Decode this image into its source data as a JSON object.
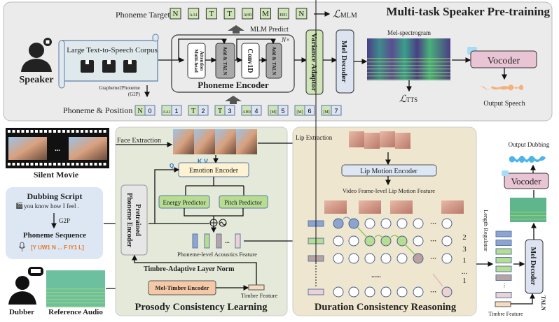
{
  "top": {
    "title": "Multi-task Speaker Pre-training",
    "speaker_label": "Speaker",
    "corpus_label": "Large Text-to-Speech Corpus",
    "g2p_label_1": "Grapheme2Phoneme",
    "g2p_label_2": "(G2P)",
    "phoneme_target_label": "Phoneme Target",
    "phoneme_target_tokens": [
      "N",
      "AA1",
      "T",
      "T",
      "AH0",
      "M",
      "EH1",
      "N"
    ],
    "mlm_loss": "ℒ",
    "mlm_loss_sub": "MLM",
    "mlm_predict_label": "MLM Predict",
    "encoder_repeat": "N×",
    "mha_label_1": "Multi-head",
    "mha_label_2": "Attention",
    "add_taln_label": "Add & TALN",
    "conv_label": "Conv1D",
    "phoneme_encoder_label": "Phoneme Encoder",
    "variance_adaptor_label": "Variance Adaptor",
    "mel_decoder_label": "Mel Decoder",
    "mel_spec_label": "Mel-spectrogram",
    "tts_loss": "ℒ",
    "tts_loss_sub": "TTS",
    "vocoder_label": "Vocoder",
    "output_speech_label": "Output Speech",
    "phoneme_position_label": "Phoneme & Position",
    "phoneme_position_tokens": [
      [
        "N",
        "0"
      ],
      [
        "AA1",
        "1"
      ],
      [
        "T",
        "2"
      ],
      [
        "T",
        "3"
      ],
      [
        "AH0",
        "4"
      ],
      [
        "[M]",
        "5"
      ],
      [
        "[M]",
        "6"
      ],
      [
        "[M]",
        "7"
      ]
    ]
  },
  "left": {
    "silent_movie_label": "Silent Movie",
    "film_ellipsis": "...",
    "script_title": "Dubbing Script",
    "script_text": "you know how I feel .",
    "g2p_label": "G2P",
    "phoneme_seq_title": "Phoneme Sequence",
    "phoneme_seq_text": "[Y UW1 N ... F IY1 L]",
    "dubber_label": "Dubber",
    "reference_audio_label": "Reference Audio"
  },
  "prosody": {
    "title": "Prosody Consistency Learning",
    "face_extraction_label": "Face Extraction",
    "kv_label": "K,V",
    "q_label": "Q",
    "emotion_encoder_label": "Emotion Encoder",
    "energy_predictor_label": "Energy Predictor",
    "pitch_predictor_label": "Pitch Predictor",
    "pretrained_encoder_label_1": "Pretrained",
    "pretrained_encoder_label_2": "Phoneme Encoder",
    "acoustics_feature_label": "Phoneme-level Acoustics Feature",
    "acoustics_ellipsis": "...",
    "taln_label": "Timbre-Adaptive Layer Norm",
    "mel_timbre_encoder_label": "Mel-Timbre Encoder",
    "timbre_feature_label": "Timbre Feature"
  },
  "duration": {
    "title": "Duration Consistency Reasoning",
    "lip_extraction_label": "Lip Extraction",
    "lip_motion_encoder_label": "Lip Motion Encoder",
    "lip_feature_label": "Video Frame-level Lip Motion Feature",
    "grid_ellipsis": "......",
    "durations": [
      "2",
      "3",
      "1",
      "...",
      "1"
    ],
    "row_colors": [
      "#8fa3cf",
      "#b7dc92",
      "#b9a3a0",
      "",
      "#ecd2d4"
    ],
    "highlights": [
      [
        0,
        1
      ],
      [
        2,
        3,
        4
      ],
      [
        5
      ],
      [],
      [
        7
      ]
    ]
  },
  "output": {
    "length_regulator_label": "Length Regulator",
    "mel_decoder_label": "Mel Decoder",
    "taln_label": "TALN",
    "timbre_feature_label": "Timbre Feature",
    "vocoder_label": "Vocoder",
    "output_dubbing_label": "Output Dubbing"
  },
  "colors": {
    "green_token": "#cfe5b8",
    "lavender": "#dde3f0",
    "vocoder_pink": "#e9c4d4",
    "prosody_bg": "#e4e9d9",
    "duration_bg": "#efe6cf",
    "script_bg": "#dde7f4",
    "phoneme_orange": "#e0782a",
    "qkv_blue": "#2a6ebf"
  }
}
